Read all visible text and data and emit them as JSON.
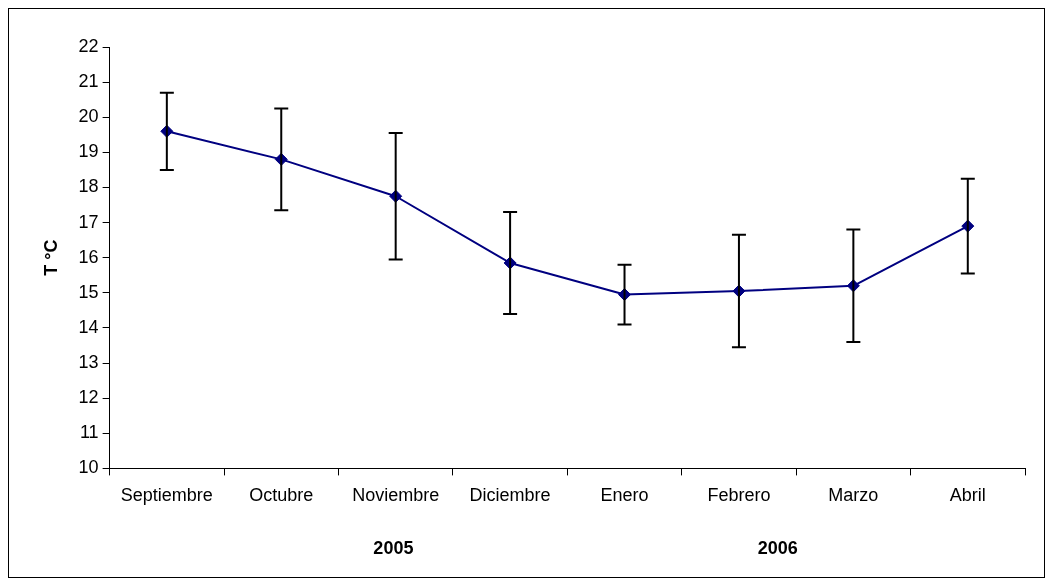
{
  "chart_data": {
    "type": "line",
    "ylabel": "T °C",
    "categories": [
      "Septiembre",
      "Octubre",
      "Noviembre",
      "Diciembre",
      "Enero",
      "Febrero",
      "Marzo",
      "Abril"
    ],
    "series": [
      {
        "color": "#000080",
        "values": [
          19.6,
          18.8,
          17.75,
          15.85,
          14.95,
          15.05,
          15.2,
          16.9
        ],
        "errors": [
          1.1,
          1.45,
          1.8,
          1.45,
          0.85,
          1.6,
          1.6,
          1.35
        ]
      }
    ],
    "ylim": [
      10,
      22
    ],
    "yticks": [
      10,
      11,
      12,
      13,
      14,
      15,
      16,
      17,
      18,
      19,
      20,
      21,
      22
    ],
    "grid": false,
    "legend": false,
    "marker": "diamond",
    "line_style": "solid",
    "annotations": [
      "2005",
      "2006"
    ]
  }
}
